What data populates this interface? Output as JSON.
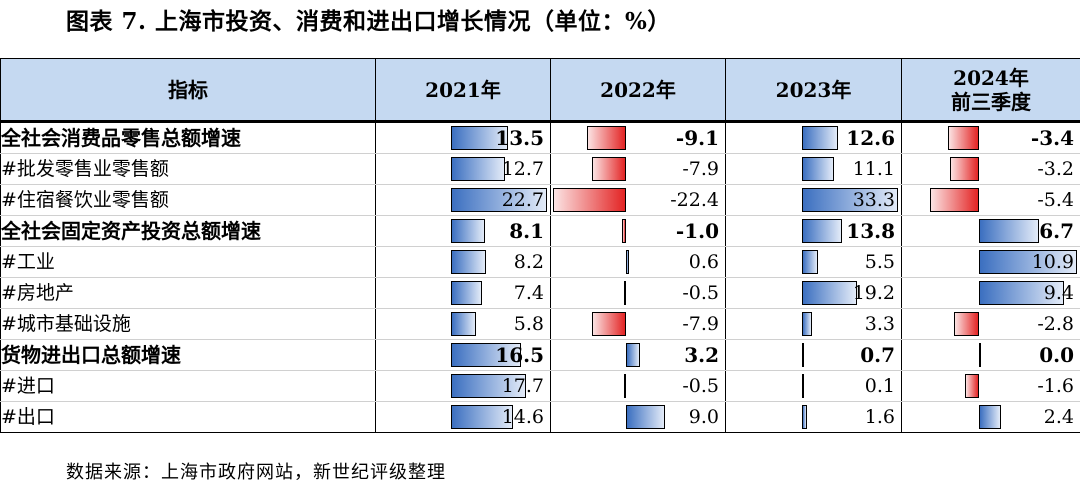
{
  "title": "图表 7. 上海市投资、消费和进出口增长情况（单位：%）",
  "headers": {
    "indicator": "指标",
    "y2021": "2021年",
    "y2022": "2022年",
    "y2023": "2023年",
    "y2024_line1": "2024年",
    "y2024_line2": "前三季度"
  },
  "rows": [
    {
      "label": "全社会消费品零售总额增速",
      "bold": true,
      "v2021": "13.5",
      "v2022": "-9.1",
      "v2023": "12.6",
      "v2024": "-3.4"
    },
    {
      "label": "#批发零售业零售额",
      "bold": false,
      "v2021": "12.7",
      "v2022": "-7.9",
      "v2023": "11.1",
      "v2024": "-3.2"
    },
    {
      "label": "#住宿餐饮业零售额",
      "bold": false,
      "v2021": "22.7",
      "v2022": "-22.4",
      "v2023": "33.3",
      "v2024": "-5.4"
    },
    {
      "label": "全社会固定资产投资总额增速",
      "bold": true,
      "v2021": "8.1",
      "v2022": "-1.0",
      "v2023": "13.8",
      "v2024": "6.7"
    },
    {
      "label": "#工业",
      "bold": false,
      "v2021": "8.2",
      "v2022": "0.6",
      "v2023": "5.5",
      "v2024": "10.9"
    },
    {
      "label": "#房地产",
      "bold": false,
      "v2021": "7.4",
      "v2022": "-0.5",
      "v2023": "19.2",
      "v2024": "9.4"
    },
    {
      "label": "#城市基础设施",
      "bold": false,
      "v2021": "5.8",
      "v2022": "-7.9",
      "v2023": "3.3",
      "v2024": "-2.8"
    },
    {
      "label": "货物进出口总额增速",
      "bold": true,
      "v2021": "16.5",
      "v2022": "3.2",
      "v2023": "0.7",
      "v2024": "0.0"
    },
    {
      "label": "#进口",
      "bold": false,
      "v2021": "17.7",
      "v2022": "-0.5",
      "v2023": "0.1",
      "v2024": "-1.6"
    },
    {
      "label": "#出口",
      "bold": false,
      "v2021": "14.6",
      "v2022": "9.0",
      "v2023": "1.6",
      "v2024": "2.4"
    }
  ],
  "source": "数据来源：上海市政府网站，新世纪评级整理",
  "colors": {
    "header_bg": "#c5d9f1",
    "positive_bar": "#3b6fc0",
    "negative_bar": "#e32424"
  }
}
